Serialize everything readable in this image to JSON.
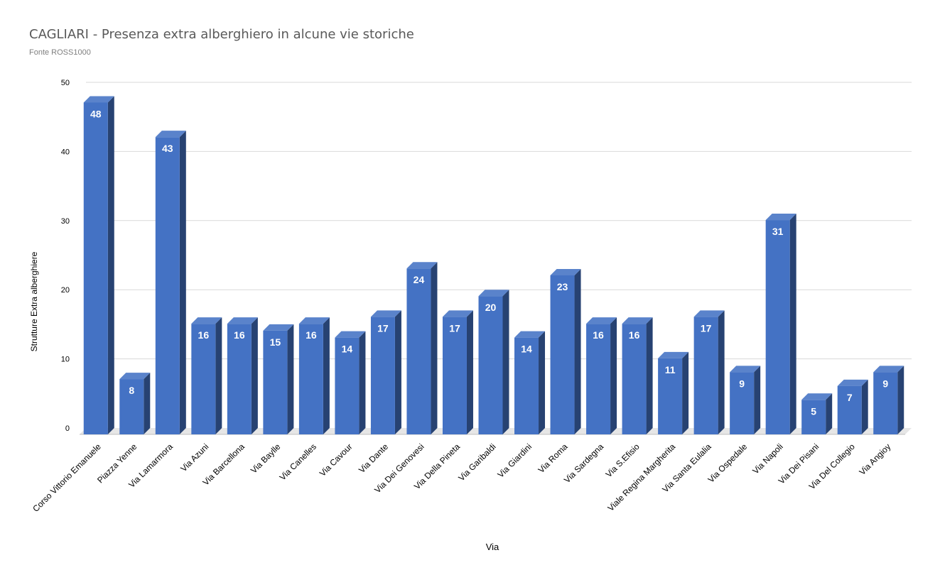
{
  "chart_data": {
    "type": "bar",
    "title": "CAGLIARI - Presenza extra alberghiero in alcune vie storiche",
    "subtitle": "Fonte ROSS1000",
    "xlabel": "Via",
    "ylabel": "Strutture Extra alberghiere",
    "ylim": [
      0,
      50
    ],
    "yticks": [
      "0",
      "10",
      "20",
      "30",
      "40",
      "50"
    ],
    "grid": true,
    "legend": "none",
    "bar_color": "#4472C4",
    "categories": [
      "Corso Vittorio Emanuele",
      "Piazza Yenne",
      "Via Lamarmora",
      "Via Azuni",
      "Via Barcellona",
      "Via Baylle",
      "Via Canelles",
      "Via Cavour",
      "Via Dante",
      "Via Dei Genovesi",
      "Via Della Pineta",
      "Via Garibaldi",
      "Via Giardini",
      "Via Roma",
      "Via Sardegna",
      "Via S.Efisio",
      "Viale Regina Margherita",
      "Via Santa Eulalia",
      "Via Ospedale",
      "Via Napoli",
      "Via Dei Pisani",
      "Via Del Collegio",
      "Via Angioy"
    ],
    "values": [
      48,
      8,
      43,
      16,
      16,
      15,
      16,
      14,
      17,
      24,
      17,
      20,
      14,
      23,
      16,
      16,
      11,
      17,
      9,
      31,
      5,
      7,
      9
    ]
  }
}
